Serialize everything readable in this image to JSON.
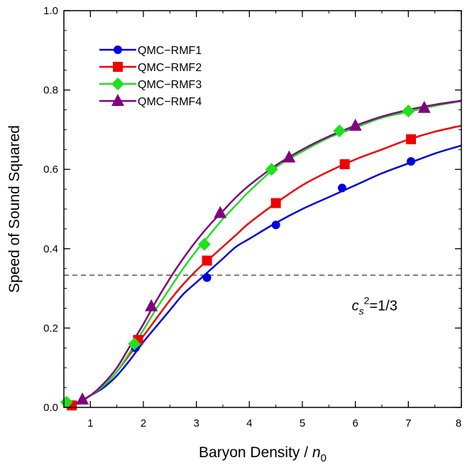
{
  "chart_data": {
    "type": "line",
    "xlabel": "Baryon  Density  /",
    "xlabel_symbol": "n",
    "xlabel_sub": "0",
    "ylabel": "Speed  of  Sound  Squared",
    "xlim": [
      0.5,
      8
    ],
    "ylim": [
      0,
      1
    ],
    "x_ticks": [
      1,
      2,
      3,
      4,
      5,
      6,
      7,
      8
    ],
    "x_minor_step": 0.5,
    "y_ticks": [
      0.0,
      0.2,
      0.4,
      0.6,
      0.8,
      1.0
    ],
    "y_tick_labels": [
      "0.0",
      "0.2",
      "0.4",
      "0.6",
      "0.8",
      "1.0"
    ],
    "y_minor_step": 0.05,
    "grid": false,
    "legend_position": "top-left",
    "reference_line": {
      "y": 0.3333,
      "style": "dashed",
      "color": "#000000"
    },
    "annotation": {
      "base": "c",
      "sub": "s",
      "sup": "2",
      "rest": "=1/3",
      "x": 6.0,
      "y": 0.245
    },
    "series": [
      {
        "name": "QMC−RMF1",
        "color": "#0000e0",
        "marker": "circle",
        "curve": [
          [
            0.5,
            0.005
          ],
          [
            0.75,
            0.012
          ],
          [
            1.0,
            0.03
          ],
          [
            1.25,
            0.05
          ],
          [
            1.5,
            0.08
          ],
          [
            1.75,
            0.12
          ],
          [
            2.0,
            0.165
          ],
          [
            2.25,
            0.205
          ],
          [
            2.5,
            0.245
          ],
          [
            2.75,
            0.285
          ],
          [
            3.0,
            0.315
          ],
          [
            3.25,
            0.345
          ],
          [
            3.5,
            0.375
          ],
          [
            3.75,
            0.405
          ],
          [
            4.0,
            0.425
          ],
          [
            4.5,
            0.465
          ],
          [
            5.0,
            0.5
          ],
          [
            5.5,
            0.53
          ],
          [
            6.0,
            0.56
          ],
          [
            6.5,
            0.59
          ],
          [
            7.0,
            0.615
          ],
          [
            7.5,
            0.64
          ],
          [
            8.0,
            0.66
          ]
        ],
        "markers": [
          [
            0.55,
            0.012
          ],
          [
            1.85,
            0.15
          ],
          [
            3.2,
            0.327
          ],
          [
            4.5,
            0.46
          ],
          [
            5.75,
            0.553
          ],
          [
            7.05,
            0.62
          ]
        ]
      },
      {
        "name": "QMC−RMF2",
        "color": "#f00000",
        "marker": "square",
        "curve": [
          [
            0.5,
            0.005
          ],
          [
            0.75,
            0.012
          ],
          [
            1.0,
            0.03
          ],
          [
            1.25,
            0.055
          ],
          [
            1.5,
            0.09
          ],
          [
            1.75,
            0.135
          ],
          [
            2.0,
            0.18
          ],
          [
            2.25,
            0.225
          ],
          [
            2.5,
            0.27
          ],
          [
            2.75,
            0.31
          ],
          [
            3.0,
            0.345
          ],
          [
            3.25,
            0.375
          ],
          [
            3.5,
            0.405
          ],
          [
            3.75,
            0.435
          ],
          [
            4.0,
            0.465
          ],
          [
            4.5,
            0.515
          ],
          [
            5.0,
            0.56
          ],
          [
            5.5,
            0.595
          ],
          [
            6.0,
            0.625
          ],
          [
            6.5,
            0.65
          ],
          [
            7.0,
            0.675
          ],
          [
            7.5,
            0.695
          ],
          [
            8.0,
            0.71
          ]
        ],
        "markers": [
          [
            0.65,
            0.005
          ],
          [
            1.9,
            0.17
          ],
          [
            3.2,
            0.37
          ],
          [
            4.5,
            0.515
          ],
          [
            5.8,
            0.613
          ],
          [
            7.05,
            0.676
          ]
        ]
      },
      {
        "name": "QMC−RMF3",
        "color": "#20e020",
        "marker": "diamond",
        "curve": [
          [
            0.5,
            0.005
          ],
          [
            0.75,
            0.012
          ],
          [
            1.0,
            0.03
          ],
          [
            1.25,
            0.055
          ],
          [
            1.5,
            0.09
          ],
          [
            1.75,
            0.14
          ],
          [
            2.0,
            0.195
          ],
          [
            2.25,
            0.25
          ],
          [
            2.5,
            0.3
          ],
          [
            2.75,
            0.35
          ],
          [
            3.0,
            0.395
          ],
          [
            3.25,
            0.435
          ],
          [
            3.5,
            0.475
          ],
          [
            3.75,
            0.51
          ],
          [
            4.0,
            0.545
          ],
          [
            4.5,
            0.605
          ],
          [
            5.0,
            0.645
          ],
          [
            5.5,
            0.68
          ],
          [
            6.0,
            0.705
          ],
          [
            6.5,
            0.73
          ],
          [
            7.0,
            0.745
          ],
          [
            7.5,
            0.76
          ],
          [
            8.0,
            0.772
          ]
        ],
        "markers": [
          [
            0.55,
            0.013
          ],
          [
            1.83,
            0.16
          ],
          [
            3.15,
            0.411
          ],
          [
            4.42,
            0.6
          ],
          [
            5.7,
            0.697
          ],
          [
            7.0,
            0.747
          ]
        ]
      },
      {
        "name": "QMC−RMF4",
        "color": "#800080",
        "marker": "triangle",
        "curve": [
          [
            0.5,
            0.005
          ],
          [
            0.75,
            0.012
          ],
          [
            1.0,
            0.03
          ],
          [
            1.25,
            0.06
          ],
          [
            1.5,
            0.1
          ],
          [
            1.75,
            0.155
          ],
          [
            2.0,
            0.21
          ],
          [
            2.25,
            0.27
          ],
          [
            2.5,
            0.325
          ],
          [
            2.75,
            0.375
          ],
          [
            3.0,
            0.42
          ],
          [
            3.25,
            0.46
          ],
          [
            3.5,
            0.495
          ],
          [
            3.75,
            0.53
          ],
          [
            4.0,
            0.56
          ],
          [
            4.5,
            0.61
          ],
          [
            5.0,
            0.65
          ],
          [
            5.5,
            0.683
          ],
          [
            6.0,
            0.71
          ],
          [
            6.5,
            0.733
          ],
          [
            7.0,
            0.75
          ],
          [
            7.5,
            0.763
          ],
          [
            8.0,
            0.773
          ]
        ],
        "markers": [
          [
            0.85,
            0.02
          ],
          [
            2.15,
            0.255
          ],
          [
            3.45,
            0.49
          ],
          [
            4.75,
            0.63
          ],
          [
            6.0,
            0.71
          ],
          [
            7.3,
            0.755
          ]
        ]
      }
    ]
  }
}
